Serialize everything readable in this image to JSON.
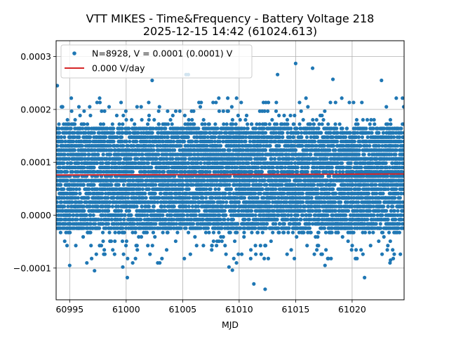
{
  "chart_data": {
    "type": "scatter",
    "title": "VTT MIKES - Time&Frequency - Battery Voltage 218",
    "subtitle": "2025-12-15 14:42 (61024.613)",
    "xlabel": "MJD",
    "ylabel": "",
    "xlim": [
      60993.8,
      61024.6
    ],
    "ylim": [
      -0.00016,
      0.00033
    ],
    "x_ticks": [
      60995,
      61000,
      61005,
      61010,
      61015,
      61020
    ],
    "x_tick_labels": [
      "60995",
      "61000",
      "61005",
      "61010",
      "61015",
      "61020"
    ],
    "y_ticks": [
      -0.0001,
      0.0,
      0.0001,
      0.0002,
      0.0003
    ],
    "y_tick_labels": [
      "−0.0001",
      "0.0000",
      "0.0001",
      "0.0002",
      "0.0003"
    ],
    "grid": true,
    "legend_position": "top-left",
    "series": [
      {
        "name": "N=8928, V = 0.0001 (0.0001) V",
        "kind": "points",
        "color": "#1f77b4",
        "n": 8928,
        "x_start": 60993.8,
        "x_end": 61024.6,
        "quantum": 8.2e-06,
        "core_range": [
          -3e-05,
          0.00017
        ],
        "tail_range": [
          -9e-05,
          0.00022
        ],
        "outliers": [
          {
            "x": 60993.9,
            "y": 0.000245
          },
          {
            "x": 60995.0,
            "y": -9.5e-05
          },
          {
            "x": 60997.2,
            "y": -0.000105
          },
          {
            "x": 60999.7,
            "y": -9.8e-05
          },
          {
            "x": 61000.1,
            "y": -0.000118
          },
          {
            "x": 61002.3,
            "y": 0.000255
          },
          {
            "x": 61005.3,
            "y": 0.000266
          },
          {
            "x": 61005.5,
            "y": 0.000266
          },
          {
            "x": 61009.1,
            "y": -9.8e-05
          },
          {
            "x": 61009.4,
            "y": -0.000104
          },
          {
            "x": 61011.3,
            "y": -0.00013
          },
          {
            "x": 61012.3,
            "y": -0.00014
          },
          {
            "x": 61013.4,
            "y": 0.000266
          },
          {
            "x": 61015.0,
            "y": 0.000287
          },
          {
            "x": 61016.5,
            "y": 0.000278
          },
          {
            "x": 61017.6,
            "y": -9.5e-05
          },
          {
            "x": 61018.3,
            "y": 0.000257
          },
          {
            "x": 61021.1,
            "y": -0.000118
          },
          {
            "x": 61022.6,
            "y": 0.000255
          },
          {
            "x": 61023.4,
            "y": -8.5e-05
          }
        ]
      },
      {
        "name": "0.000 V/day",
        "kind": "fit-line",
        "color": "#d62728",
        "x": [
          60993.8,
          61024.6
        ],
        "y": [
          7.6e-05,
          7.8e-05
        ]
      }
    ]
  }
}
